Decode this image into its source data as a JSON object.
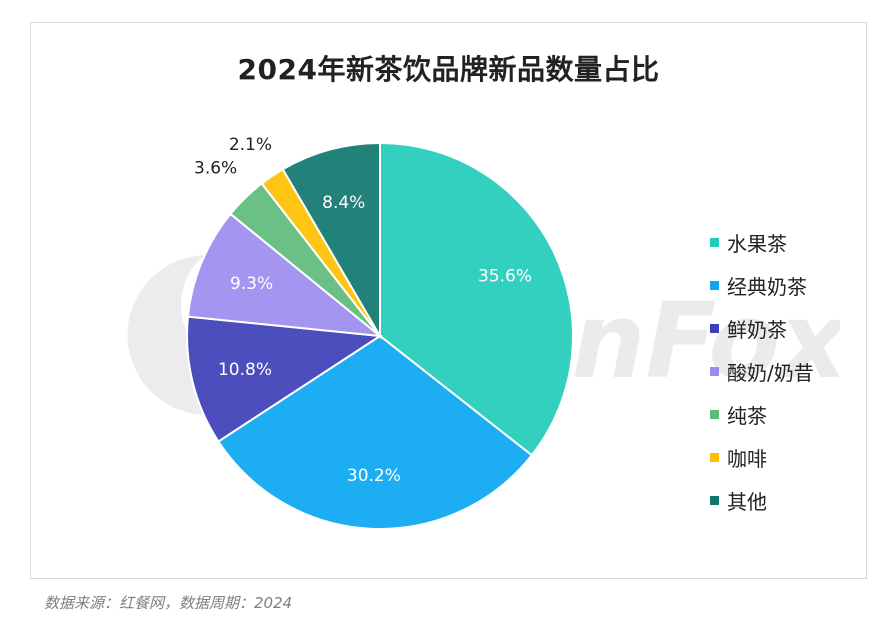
{
  "chart_data": {
    "type": "pie",
    "title": "2024年新茶饮品牌新品数量占比",
    "slices": [
      {
        "name": "水果茶",
        "value": 35.6,
        "label": "35.6%",
        "color": "#22CCBB"
      },
      {
        "name": "经典奶茶",
        "value": 30.2,
        "label": "30.2%",
        "color": "#0AA6F2"
      },
      {
        "name": "鲜奶茶",
        "value": 10.8,
        "label": "10.8%",
        "color": "#3D3FB8"
      },
      {
        "name": "酸奶/奶昔",
        "value": 9.3,
        "label": "9.3%",
        "color": "#9C8CF0"
      },
      {
        "name": "纯茶",
        "value": 3.6,
        "label": "3.6%",
        "color": "#5DBB7B"
      },
      {
        "name": "咖啡",
        "value": 2.1,
        "label": "2.1%",
        "color": "#FFC000"
      },
      {
        "name": "其他",
        "value": 8.4,
        "label": "8.4%",
        "color": "#0F766E"
      }
    ],
    "legend_position": "right"
  },
  "source_note": "数据来源：红餐网，数据周期：2024",
  "watermark_text": "MoonFox"
}
